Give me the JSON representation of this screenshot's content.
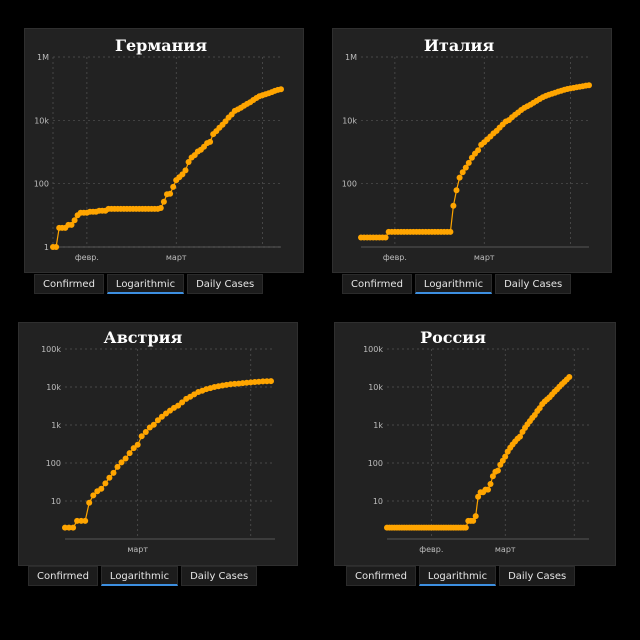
{
  "colors": {
    "background": "#000000",
    "panel": "#222222",
    "series": "#ffa500",
    "grid": "#555555",
    "tab_active_underline": "#3d8fe0"
  },
  "tabs": {
    "confirmed": "Confirmed",
    "logarithmic": "Logarithmic",
    "daily": "Daily Cases",
    "active": "logarithmic"
  },
  "chart_data": [
    {
      "type": "line",
      "scale": "log",
      "grid": true,
      "title": "Германия",
      "ylim": [
        1,
        1000000
      ],
      "yticks": [
        {
          "v": 1,
          "label": "1"
        },
        {
          "v": 100,
          "label": "100"
        },
        {
          "v": 10000,
          "label": "10k"
        },
        {
          "v": 1000000,
          "label": "1M"
        }
      ],
      "xlim": [
        0,
        74
      ],
      "xticks": [
        {
          "x": 11,
          "label": "февр."
        },
        {
          "x": 40,
          "label": "март"
        }
      ],
      "vgrid": [
        0,
        11,
        40,
        68
      ],
      "series": [
        {
          "values": [
            1,
            1,
            4,
            4,
            4,
            5,
            5,
            7,
            10,
            12,
            12,
            12,
            13,
            13,
            13,
            14,
            14,
            14,
            16,
            16,
            16,
            16,
            16,
            16,
            16,
            16,
            16,
            16,
            16,
            16,
            16,
            16,
            16,
            16,
            16,
            17,
            27,
            46,
            48,
            79,
            130,
            159,
            196,
            262,
            482,
            670,
            799,
            1040,
            1176,
            1457,
            1908,
            2078,
            3675,
            4585,
            5795,
            7272,
            9257,
            12327,
            15320,
            19848,
            22213,
            24873,
            29056,
            32986,
            37323,
            43938,
            50871,
            57695,
            62095,
            66885,
            71808,
            77872,
            84794,
            91159,
            96092,
            100123,
            103374,
            107663,
            113296,
            118181,
            122171,
            124908,
            127854,
            130072,
            131359,
            134753,
            137698,
            141397
          ]
        }
      ]
    },
    {
      "type": "line",
      "scale": "log",
      "grid": true,
      "title": "Италия",
      "ylim": [
        1,
        1000000
      ],
      "yticks": [
        {
          "v": 100,
          "label": "100"
        },
        {
          "v": 10000,
          "label": "10k"
        },
        {
          "v": 1000000,
          "label": "1M"
        }
      ],
      "xlim": [
        0,
        74
      ],
      "xticks": [
        {
          "x": 11,
          "label": "февр."
        },
        {
          "x": 40,
          "label": "март"
        }
      ],
      "vgrid": [
        11,
        40,
        68
      ],
      "series": [
        {
          "values": [
            2,
            2,
            2,
            2,
            2,
            2,
            2,
            2,
            2,
            3,
            3,
            3,
            3,
            3,
            3,
            3,
            3,
            3,
            3,
            3,
            3,
            3,
            3,
            3,
            3,
            3,
            3,
            3,
            3,
            3,
            20,
            62,
            155,
            229,
            322,
            453,
            655,
            888,
            1128,
            1694,
            2036,
            2502,
            3089,
            3858,
            4636,
            5883,
            7375,
            9172,
            10149,
            12462,
            15113,
            17660,
            21157,
            24747,
            27980,
            31506,
            35713,
            41035,
            47021,
            53578,
            59138,
            63927,
            69176,
            74386,
            80589,
            86498,
            92472,
            97689,
            101739,
            105792,
            110574,
            115242,
            119827,
            124632,
            128948,
            132547,
            135586,
            139422,
            143626,
            147577,
            152271,
            156363,
            159516,
            162488,
            165155,
            168941,
            172434
          ]
        }
      ]
    },
    {
      "type": "line",
      "scale": "log",
      "grid": true,
      "title": "Австрия",
      "ylim": [
        1,
        100000
      ],
      "yticks": [
        {
          "v": 10,
          "label": "10"
        },
        {
          "v": 100,
          "label": "100"
        },
        {
          "v": 1000,
          "label": "1k"
        },
        {
          "v": 10000,
          "label": "10k"
        },
        {
          "v": 100000,
          "label": "100k"
        }
      ],
      "xlim": [
        0,
        52
      ],
      "xticks": [
        {
          "x": 18,
          "label": "март"
        }
      ],
      "vgrid": [
        18,
        46
      ],
      "series": [
        {
          "values": [
            2,
            2,
            2,
            3,
            3,
            3,
            9,
            14,
            18,
            21,
            29,
            41,
            55,
            79,
            104,
            131,
            182,
            246,
            302,
            504,
            655,
            860,
            1018,
            1332,
            1646,
            2013,
            2388,
            2814,
            3244,
            3924,
            4876,
            5560,
            6398,
            7399,
            7995,
            8813,
            9377,
            9974,
            10482,
            10967,
            11383,
            11781,
            12051,
            12297,
            12639,
            12942,
            13244,
            13555,
            13806,
            14041,
            14226,
            14336
          ]
        }
      ]
    },
    {
      "type": "line",
      "scale": "log",
      "grid": true,
      "title": "Россия",
      "ylim": [
        1,
        100000
      ],
      "yticks": [
        {
          "v": 10,
          "label": "10"
        },
        {
          "v": 100,
          "label": "100"
        },
        {
          "v": 1000,
          "label": "1k"
        },
        {
          "v": 10000,
          "label": "10k"
        },
        {
          "v": 100000,
          "label": "100k"
        }
      ],
      "xlim": [
        0,
        82
      ],
      "xticks": [
        {
          "x": 18,
          "label": "февр."
        },
        {
          "x": 48,
          "label": "март"
        }
      ],
      "vgrid": [
        18,
        48,
        76
      ],
      "series": [
        {
          "values": [
            2,
            2,
            2,
            2,
            2,
            2,
            2,
            2,
            2,
            2,
            2,
            2,
            2,
            2,
            2,
            2,
            2,
            2,
            2,
            2,
            2,
            2,
            2,
            2,
            2,
            2,
            2,
            2,
            2,
            2,
            2,
            2,
            2,
            3,
            3,
            3,
            4,
            13,
            17,
            17,
            20,
            20,
            28,
            45,
            59,
            63,
            90,
            114,
            147,
            199,
            253,
            306,
            367,
            438,
            495,
            658,
            840,
            1036,
            1264,
            1534,
            1836,
            2337,
            2777,
            3548,
            4149,
            4731,
            5389,
            6343,
            7497,
            8672,
            10131,
            11917,
            13584,
            15770,
            18328
          ]
        }
      ]
    }
  ]
}
